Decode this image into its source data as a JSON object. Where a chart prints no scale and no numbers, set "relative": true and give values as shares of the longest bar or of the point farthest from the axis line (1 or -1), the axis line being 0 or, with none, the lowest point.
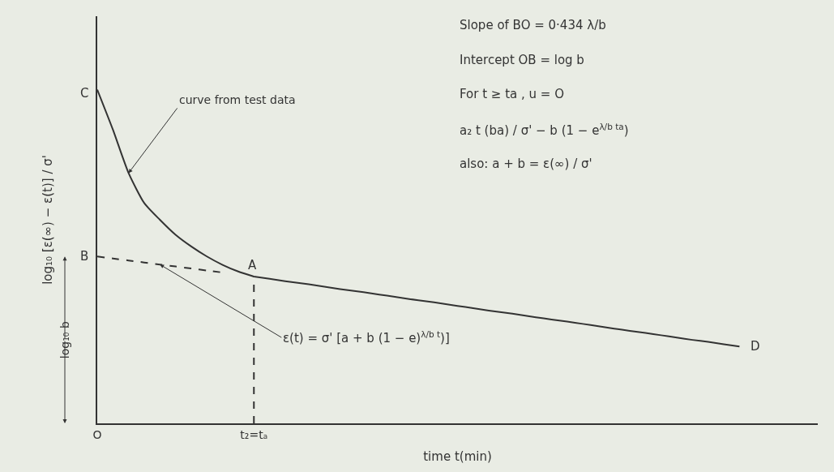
{
  "chart_data": {
    "type": "line",
    "relative": true,
    "xlabel": "time t(min)",
    "ylabel": "log₁₀ [ε(∞) − ε(t)] / σ'",
    "categories": [
      "O",
      null,
      null,
      null,
      null,
      null,
      null,
      null,
      null,
      null,
      "t₂=tₐ",
      null,
      null,
      null,
      null,
      null,
      null,
      null,
      null,
      null,
      null,
      null,
      null,
      null,
      null,
      null,
      null,
      null,
      null,
      null,
      null,
      null,
      null,
      null,
      null,
      null,
      null,
      null,
      null,
      null,
      null,
      null,
      null,
      null,
      null,
      null,
      null
    ],
    "grid": false,
    "marker": "none",
    "series": [
      {
        "color": "#333333",
        "line_style": "solid",
        "values": [
          1,
          0.88,
          0.75,
          0.66,
          0.61,
          0.565,
          0.53,
          0.5,
          0.475,
          0.455,
          0.44,
          null,
          null,
          null,
          null,
          null,
          null,
          null,
          null,
          null,
          null,
          null,
          null,
          null,
          null,
          null,
          null,
          null,
          null,
          null,
          null,
          null,
          null,
          null,
          null,
          null,
          null,
          null,
          null,
          null,
          null,
          null,
          null,
          null,
          null,
          null,
          null
        ]
      },
      {
        "color": "#333333",
        "line_style": "dashed",
        "values": [
          0.5,
          0.494,
          0.488,
          0.482,
          0.476,
          0.47,
          0.464,
          0.458,
          0.452,
          null,
          null,
          null,
          null,
          null,
          null,
          null,
          null,
          null,
          null,
          null,
          null,
          null,
          null,
          null,
          null,
          null,
          null,
          null,
          null,
          null,
          null,
          null,
          null,
          null,
          null,
          null,
          null,
          null,
          null,
          null,
          null,
          null,
          null,
          null,
          null,
          null,
          null
        ]
      },
      {
        "color": "#333333",
        "line_style": "solid",
        "values": [
          null,
          null,
          null,
          null,
          null,
          null,
          null,
          null,
          null,
          null,
          0.44,
          0.433,
          0.426,
          0.42,
          0.413,
          0.406,
          0.399,
          0.393,
          0.386,
          0.379,
          0.372,
          0.366,
          0.359,
          0.352,
          0.345,
          0.338,
          0.332,
          0.325,
          0.318,
          0.311,
          0.305,
          0.298,
          0.291,
          0.284,
          0.277,
          0.271,
          0.264,
          0.257,
          0.25,
          0.244,
          0.237,
          0.23,
          null,
          null,
          null,
          null,
          null
        ]
      }
    ],
    "ref_lines": [
      {
        "axis": "x",
        "value": "t₂=tₐ",
        "color": "#333333",
        "line_style": "dashed"
      }
    ],
    "annotations": [
      {
        "text": "C",
        "x": "O",
        "y": 1
      },
      {
        "text": "B",
        "x": "O",
        "y": 0.5
      },
      {
        "text": "A",
        "x": "t₂=tₐ",
        "y": 0.44
      },
      "D",
      "curve from test data",
      "ε(t) = σ' [a + b (1 − e)$^{λ/b t}$)]",
      "log₁₀ b",
      "Slope of BO = 0·434 λ/b",
      "Intercept OB = log b",
      "For t ≥ ta , u = O",
      "a₂ t (ba) / σ' − b (1 − e$^{λ/b ta}$)",
      "also: a + b = ε(∞) / σ'"
    ]
  }
}
